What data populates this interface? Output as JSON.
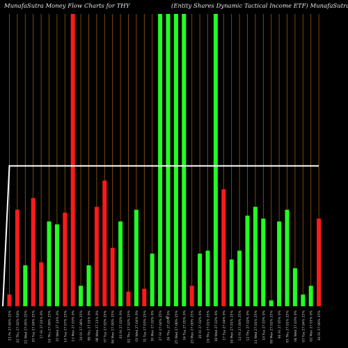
{
  "header": {
    "title_left": "MunafaSutra  Money Flow  Charts for THY",
    "title_right": "(Entity Shares Dynamic Tactical Income    ETF) MunafaSutra.com"
  },
  "colors": {
    "background": "#000000",
    "up": "#22ff22",
    "down": "#ff1a1a",
    "grid": "#9a5a10",
    "line": "#ffffff",
    "label": "#cfcfcf"
  },
  "chart_data": {
    "type": "bar",
    "title": "MunafaSutra  Money Flow  Charts for THY",
    "subtitle": "(Entity Shares Dynamic Tactical Income    ETF) MunafaSutra.com",
    "categories": [
      "23 Fri 27.04% 25%",
      "22 Thu 27.02% 50%",
      "21 Wed 27.05% 25%",
      "20 Tue 27.04% 25%",
      "17 Fri 27.01% 0%",
      "16 Thu 27.09% 25%",
      "15 Wed 27.14% 0%",
      "14 Tue 27.07% 25%",
      "13 Mon 27.03% 0%",
      "10 Fri 27.08% 25%",
      "09 Thu 27.01% 0%",
      "08 Wed 27.11% 0%",
      "07 Tue 27.02% 25%",
      "06 Mon 27.00% 25%",
      "03 Fri 27.02% 0%",
      "02 Thu 27.02% 25%",
      "01 Wed 27.04% 0%",
      "31 Tue 27.03% 25%",
      "30 Mon 27.02% 0%",
      "27 Fri 27.04% 25%",
      "26 Thu 27.05% 0%",
      "25 Wed 27.08% 25%",
      "24 Tue 27.05% 0%",
      "23 Mon 27.00% 25%",
      "20 Fri 27.02% 0%",
      "19 Thu 27.01% 25%",
      "18 Wed 27.03% 0%",
      "17 Tue 27.04% 0%",
      "16 Mon 27.01% 25%",
      "13 Fri 27.00% 25%",
      "12 Thu 27.02% 0%",
      "11 Wed 27.01% 25%",
      "10 Tue 27.03% 0%",
      "09 Mon 27.02% 25%",
      "06 Fri 27.05% 0%",
      "05 Thu 27.01% 25%",
      "04 Wed 27.03% 0%",
      "03 Tue 27.04% 25%",
      "02 Mon 27.01% 0%",
      "30 Fri 27.00% 25%"
    ],
    "bar_colors": [
      "red",
      "red",
      "green",
      "red",
      "red",
      "green",
      "green",
      "red",
      "red",
      "green",
      "green",
      "red",
      "red",
      "red",
      "green",
      "red",
      "green",
      "red",
      "green",
      "green",
      "green",
      "green",
      "green",
      "red",
      "green",
      "green",
      "green",
      "red",
      "green",
      "green",
      "green",
      "green",
      "green",
      "green",
      "green",
      "green",
      "green",
      "green",
      "green",
      "red"
    ],
    "values": [
      4,
      33,
      14,
      37,
      15,
      29,
      28,
      32,
      100,
      7,
      14,
      34,
      43,
      20,
      29,
      5,
      33,
      6,
      18,
      100,
      100,
      100,
      100,
      7,
      18,
      19,
      100,
      40,
      16,
      19,
      31,
      34,
      30,
      2,
      29,
      33,
      13,
      4,
      7,
      30
    ],
    "line": [
      48,
      48,
      48,
      48,
      48,
      48,
      48,
      48,
      48,
      48,
      48,
      48,
      48,
      48,
      48,
      48,
      48,
      48,
      48,
      48,
      48,
      48,
      48,
      48,
      48,
      48,
      48,
      48,
      48,
      48,
      48,
      48,
      48,
      48,
      48,
      48,
      48,
      48,
      48,
      48
    ],
    "center_mark": "%",
    "ylim": [
      0,
      100
    ],
    "grid": true,
    "legend": "none"
  }
}
